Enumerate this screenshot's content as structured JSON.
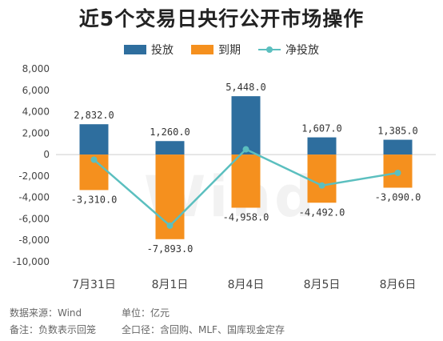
{
  "title": "近5个交易日央行公开市场操作",
  "legend": {
    "release": "投放",
    "maturity": "到期",
    "net": "净投放"
  },
  "colors": {
    "release": "#2e6e9e",
    "maturity": "#f5901e",
    "net": "#5bbfbf"
  },
  "watermark": "Wind",
  "footer": {
    "source": "数据来源：Wind",
    "unit": "单位：亿元",
    "note": "备注：负数表示回笼",
    "scope": "全口径：含回购、MLF、国库现金定存"
  },
  "chart_data": {
    "type": "bar",
    "categories": [
      "7月31日",
      "8月1日",
      "8月4日",
      "8月5日",
      "8月6日"
    ],
    "series": [
      {
        "name": "投放",
        "values": [
          2832.0,
          1260.0,
          5448.0,
          1607.0,
          1385.0
        ]
      },
      {
        "name": "到期",
        "values": [
          -3310.0,
          -7893.0,
          -4958.0,
          -4492.0,
          -3090.0
        ]
      },
      {
        "name": "净投放",
        "type": "line",
        "values": [
          -478.0,
          -6633.0,
          490.0,
          -2885.0,
          -1705.0
        ]
      }
    ],
    "bar_labels": {
      "release": [
        "2,832.0",
        "1,260.0",
        "5,448.0",
        "1,607.0",
        "1,385.0"
      ],
      "maturity": [
        "-3,310.0",
        "-7,893.0",
        "-4,958.0",
        "-4,492.0",
        "-3,090.0"
      ]
    },
    "y_ticks": [
      "8,000",
      "6,000",
      "4,000",
      "2,000",
      "0",
      "-2,000",
      "-4,000",
      "-6,000",
      "-8,000",
      "-10,000"
    ],
    "ylim": [
      -10000,
      8000
    ],
    "grid": false,
    "legend_position": "top"
  }
}
